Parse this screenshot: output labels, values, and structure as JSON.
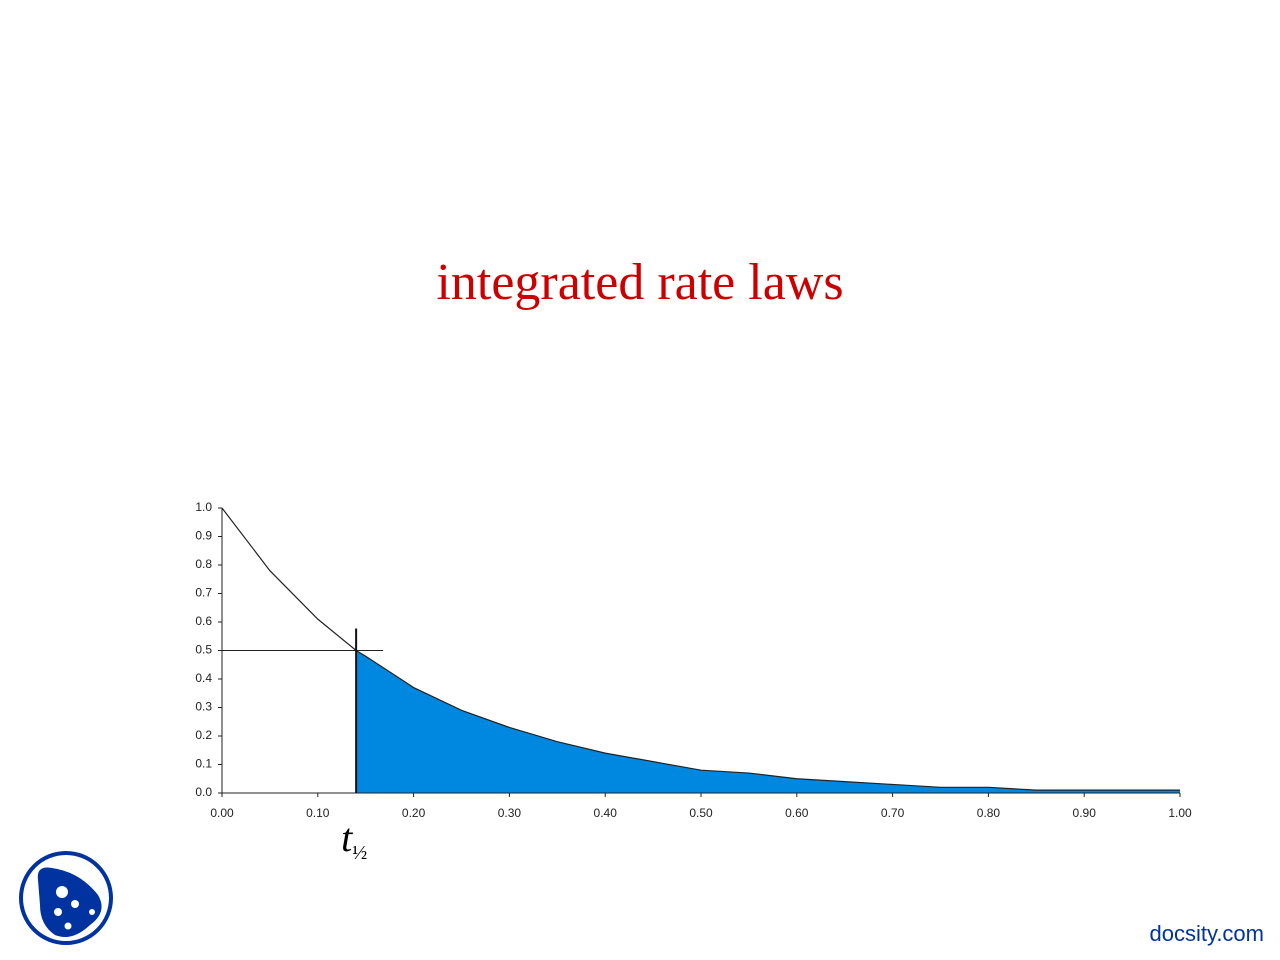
{
  "title": "integrated rate laws",
  "footer": "docsity.com",
  "chart_data": {
    "type": "area",
    "x": [
      0,
      0.05,
      0.1,
      0.14,
      0.15,
      0.2,
      0.25,
      0.3,
      0.35,
      0.4,
      0.45,
      0.5,
      0.55,
      0.6,
      0.65,
      0.7,
      0.75,
      0.8,
      0.85,
      0.9,
      0.95,
      1.0
    ],
    "values": [
      1.0,
      0.78,
      0.61,
      0.5,
      0.48,
      0.37,
      0.29,
      0.23,
      0.18,
      0.14,
      0.11,
      0.08,
      0.07,
      0.05,
      0.04,
      0.03,
      0.02,
      0.02,
      0.01,
      0.01,
      0.01,
      0.01
    ],
    "color": "#0088e0",
    "line_color": "#222222",
    "fill_from_index": 3,
    "half_life": {
      "x": 0.14,
      "y": 0.5,
      "symbol": "t",
      "subscript": "½"
    },
    "xlim": [
      0,
      1
    ],
    "ylim": [
      0,
      1
    ],
    "xticks": [
      {
        "value": 0,
        "label": "0.00"
      },
      {
        "value": 0.1,
        "label": "0.10"
      },
      {
        "value": 0.2,
        "label": "0.20"
      },
      {
        "value": 0.3,
        "label": "0.30"
      },
      {
        "value": 0.4,
        "label": "0.40"
      },
      {
        "value": 0.5,
        "label": "0.50"
      },
      {
        "value": 0.6,
        "label": "0.60"
      },
      {
        "value": 0.7,
        "label": "0.70"
      },
      {
        "value": 0.8,
        "label": "0.80"
      },
      {
        "value": 0.9,
        "label": "0.90"
      },
      {
        "value": 1,
        "label": "1.00"
      }
    ],
    "yticks": [
      {
        "value": 0,
        "label": "0.0"
      },
      0.1,
      0.2,
      0.3,
      0.4,
      0.5,
      0.6,
      0.7,
      0.8,
      0.9,
      {
        "value": 1,
        "label": "1.0"
      }
    ]
  }
}
